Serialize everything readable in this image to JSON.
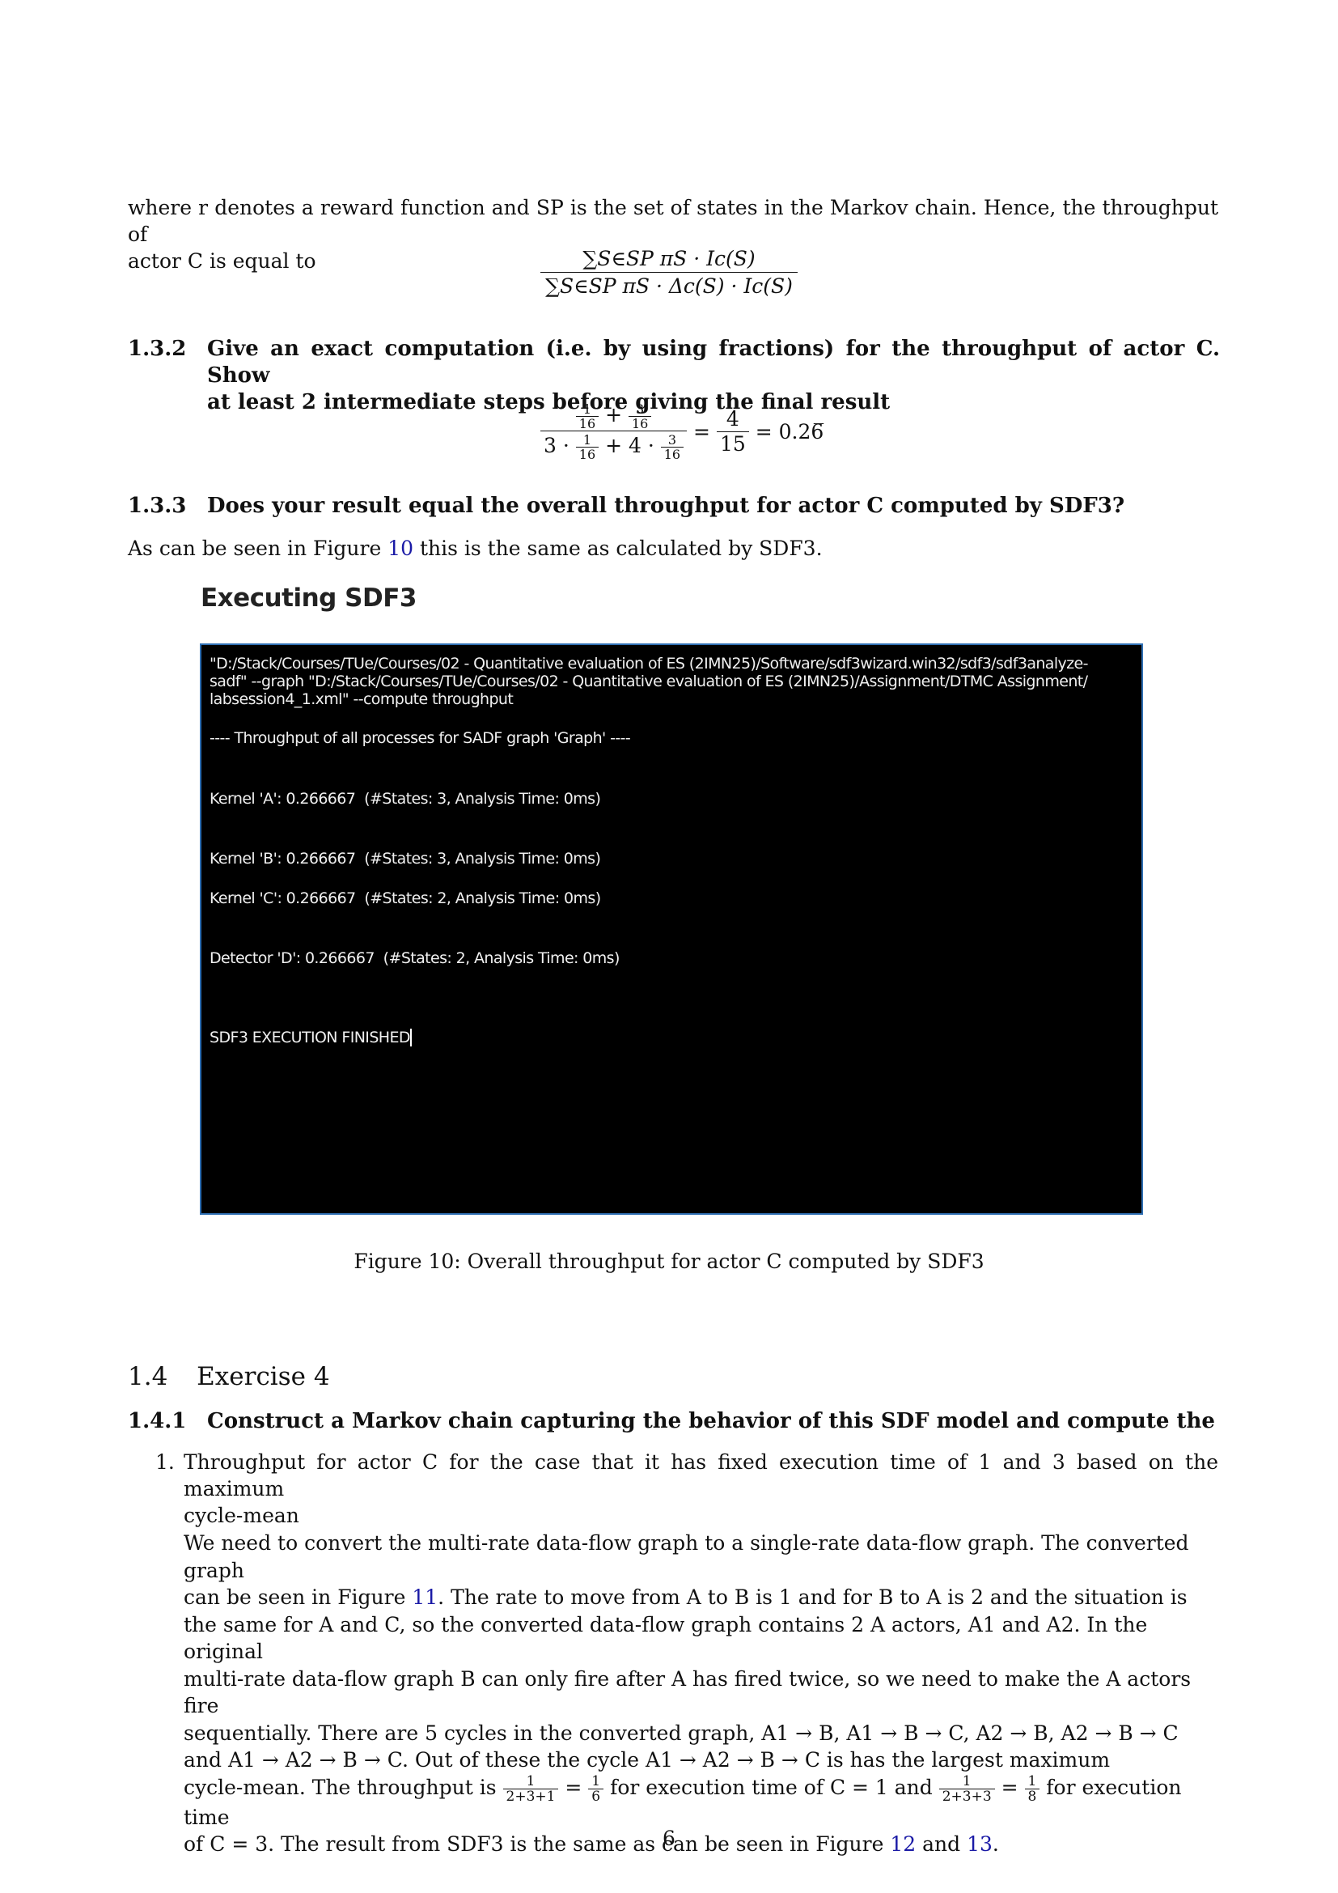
{
  "intro": {
    "line1": "where r denotes a reward function and SP is the set of states in the Markov chain. Hence, the throughput of",
    "line2": "actor C is equal to"
  },
  "formula1": {
    "numerator": "∑S∈SP πS · Ic(S)",
    "denominator": "∑S∈SP πS · Δc(S) · Ic(S)"
  },
  "sec132": {
    "number": "1.3.2",
    "title_line1": "Give an exact computation (i.e. by using fractions) for the throughput of actor C. Show",
    "title_line2": "at least 2 intermediate steps before giving the final result"
  },
  "formula2": {
    "n1_num": "1",
    "n1_den": "16",
    "n2_num": "3",
    "n2_den": "16",
    "d_coef1": "3 ·",
    "d1_num": "1",
    "d1_den": "16",
    "d_plus": "+ 4 ·",
    "d2_num": "3",
    "d2_den": "16",
    "mid_num": "4",
    "mid_den": "15",
    "result": "= 0.26̅"
  },
  "sec133": {
    "number": "1.3.3",
    "title": "Does your result equal the overall throughput for actor C computed by SDF3?",
    "text_before": "As can be seen in Figure ",
    "fig_ref": "10",
    "text_after": " this is the same as calculated by SDF3."
  },
  "terminal": {
    "window_title": "Executing SDF3",
    "lines": [
      "\"D:/Stack/Courses/TUe/Courses/02 - Quantitative evaluation of ES (2IMN25)/Software/sdf3wizard.win32/sdf3/sdf3analyze-",
      "sadf\" --graph \"D:/Stack/Courses/TUe/Courses/02 - Quantitative evaluation of ES (2IMN25)/Assignment/DTMC Assignment/",
      "labsession4_1.xml\" --compute throughput",
      "---- Throughput of all processes for SADF graph 'Graph' ----",
      "Kernel 'A': 0.266667  (#States: 3, Analysis Time: 0ms)",
      "Kernel 'B': 0.266667  (#States: 3, Analysis Time: 0ms)",
      "Kernel 'C': 0.266667  (#States: 2, Analysis Time: 0ms)",
      "Detector 'D': 0.266667  (#States: 2, Analysis Time: 0ms)",
      "SDF3 EXECUTION FINISHED"
    ]
  },
  "figure10_caption": "Figure 10: Overall throughput for actor C computed by SDF3",
  "sec14": {
    "number": "1.4",
    "title": "Exercise 4"
  },
  "sec141": {
    "number": "1.4.1",
    "title": "Construct a Markov chain capturing the behavior of this SDF model and compute the"
  },
  "item1": {
    "number": "1.",
    "line1": "Throughput for actor C for the case that it has fixed execution time of 1 and 3 based on the maximum",
    "line2": "cycle-mean"
  },
  "body": {
    "l1": "We need to convert the multi-rate data-flow graph to a single-rate data-flow graph. The converted graph",
    "l2a": "can be seen in Figure ",
    "l2ref": "11",
    "l2b": ". The rate to move from A to B is 1 and for B to A is 2 and the situation is",
    "l3": "the same for A and C, so the converted data-flow graph contains 2 A actors, A1 and A2. In the original",
    "l4": "multi-rate data-flow graph B can only fire after A has fired twice, so we need to make the A actors fire",
    "l5": "sequentially. There are 5 cycles in the converted graph, A1 → B, A1 → B → C, A2 → B, A2 → B → C",
    "l6": "and A1 → A2 → B → C. Out of these the cycle A1 → A2 → B → C is has the largest maximum",
    "l7a": "cycle-mean. The throughput is ",
    "f1num": "1",
    "f1den": "2+3+1",
    "l7eq1": " = ",
    "f2num": "1",
    "f2den": "6",
    "l7b": " for execution time of C = 1 and ",
    "f3num": "1",
    "f3den": "2+3+3",
    "l7eq2": " = ",
    "f4num": "1",
    "f4den": "8",
    "l7c": " for execution time",
    "l8a": "of C = 3. The result from SDF3 is the same as can be seen in Figure ",
    "ref12": "12",
    "l8and": " and ",
    "ref13": "13",
    "l8end": "."
  },
  "page_number": "6"
}
